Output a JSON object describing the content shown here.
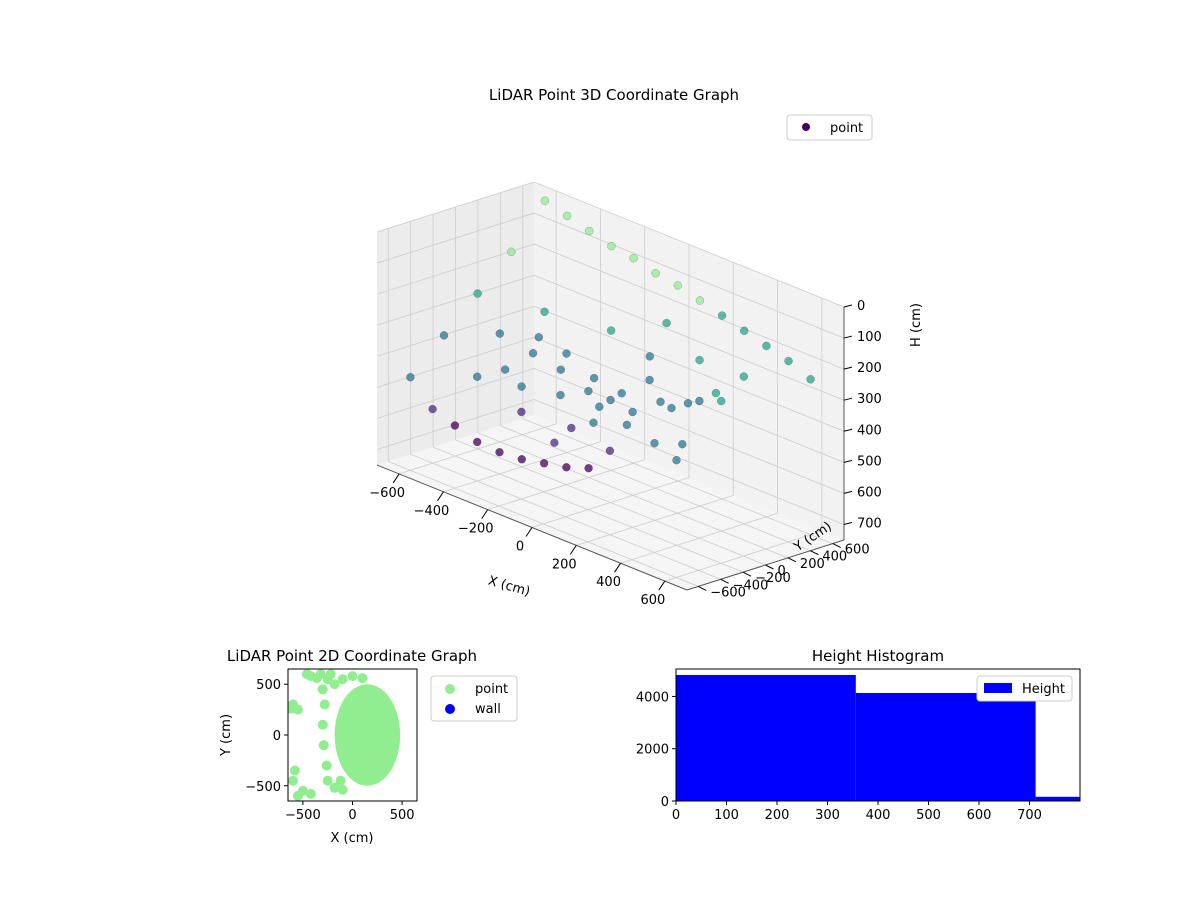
{
  "colors": {
    "purple_dark": "#440154",
    "purple_mid": "#472d7b",
    "teal": "#2a788e",
    "green_teal": "#22a884",
    "light_green": "#90ee90",
    "blue": "#0000ff",
    "pane_grey": "#f2f2f2",
    "grid_grey": "#cccccc"
  },
  "chart_data": [
    {
      "type": "scatter3d",
      "title": "LiDAR Point 3D Coordinate Graph",
      "xlabel": "X (cm)",
      "ylabel": "Y (cm)",
      "zlabel": "H (cm)",
      "xlim": [
        -700,
        700
      ],
      "ylim": [
        -700,
        700
      ],
      "zlim": [
        0,
        750
      ],
      "z_inverted": true,
      "x_ticks": [
        -600,
        -400,
        -200,
        0,
        200,
        400,
        600
      ],
      "y_ticks": [
        -600,
        -400,
        -200,
        0,
        200,
        400,
        600
      ],
      "z_ticks": [
        0,
        100,
        200,
        300,
        400,
        500,
        600,
        700
      ],
      "x_tick_labels": [
        "−600",
        "−400",
        "−200",
        "0",
        "200",
        "400",
        "600"
      ],
      "y_tick_labels": [
        "−600",
        "−400",
        "−200",
        "0",
        "200",
        "400",
        "600"
      ],
      "z_tick_labels": [
        "0",
        "100",
        "200",
        "300",
        "400",
        "500",
        "600",
        "700"
      ],
      "legend": {
        "entries": [
          "point"
        ],
        "placement": "top-right"
      },
      "series": [
        {
          "name": "point",
          "colormap": "viridis",
          "points": [
            [
              0,
              0,
              420
            ],
            [
              100,
              0,
              430
            ],
            [
              -100,
              0,
              420
            ],
            [
              0,
              100,
              410
            ],
            [
              0,
              -100,
              430
            ],
            [
              150,
              150,
              400
            ],
            [
              -150,
              150,
              410
            ],
            [
              150,
              -150,
              440
            ],
            [
              -150,
              -150,
              430
            ],
            [
              250,
              50,
              380
            ],
            [
              -250,
              50,
              400
            ],
            [
              50,
              250,
              370
            ],
            [
              50,
              -250,
              450
            ],
            [
              300,
              200,
              360
            ],
            [
              -300,
              200,
              380
            ],
            [
              300,
              -200,
              450
            ],
            [
              -300,
              -200,
              440
            ],
            [
              350,
              0,
              330
            ],
            [
              -350,
              0,
              370
            ],
            [
              0,
              350,
              320
            ],
            [
              0,
              -350,
              470
            ],
            [
              400,
              150,
              300
            ],
            [
              -400,
              150,
              350
            ],
            [
              400,
              -150,
              430
            ],
            [
              -400,
              -150,
              420
            ],
            [
              200,
              400,
              280
            ],
            [
              -200,
              400,
              300
            ],
            [
              200,
              -400,
              480
            ],
            [
              -200,
              -400,
              470
            ],
            [
              450,
              300,
              250
            ],
            [
              -450,
              300,
              300
            ],
            [
              450,
              -300,
              450
            ],
            [
              -450,
              -300,
              440
            ],
            [
              500,
              0,
              280
            ],
            [
              -500,
              0,
              350
            ],
            [
              0,
              500,
              230
            ],
            [
              0,
              -500,
              500
            ],
            [
              -600,
              600,
              20
            ],
            [
              -500,
              600,
              40
            ],
            [
              -400,
              600,
              60
            ],
            [
              -300,
              600,
              80
            ],
            [
              -200,
              600,
              90
            ],
            [
              -100,
              600,
              110
            ],
            [
              0,
              600,
              120
            ],
            [
              100,
              600,
              140
            ],
            [
              200,
              600,
              160
            ],
            [
              300,
              600,
              180
            ],
            [
              400,
              600,
              200
            ],
            [
              500,
              600,
              220
            ],
            [
              600,
              600,
              250
            ],
            [
              -600,
              300,
              150
            ],
            [
              -600,
              0,
              250
            ],
            [
              -600,
              -300,
              350
            ],
            [
              -600,
              -600,
              450
            ],
            [
              -550,
              -500,
              550
            ],
            [
              -500,
              -400,
              600
            ],
            [
              -450,
              -300,
              650
            ],
            [
              -400,
              -200,
              680
            ],
            [
              -350,
              -100,
              700
            ],
            [
              -300,
              0,
              710
            ],
            [
              -250,
              100,
              720
            ],
            [
              -200,
              200,
              720
            ]
          ]
        }
      ]
    },
    {
      "type": "scatter",
      "title": "LiDAR Point 2D Coordinate Graph",
      "xlabel": "X (cm)",
      "ylabel": "Y (cm)",
      "xlim": [
        -650,
        650
      ],
      "ylim": [
        -650,
        650
      ],
      "x_ticks": [
        -500,
        0,
        500
      ],
      "y_ticks": [
        -500,
        0,
        500
      ],
      "x_tick_labels": [
        "−500",
        "0",
        "500"
      ],
      "y_tick_labels": [
        "−500",
        "0",
        "500"
      ],
      "legend": {
        "entries": [
          "point",
          "wall"
        ],
        "placement": "outside-right"
      },
      "series": [
        {
          "name": "point",
          "color": "#90ee90",
          "points": [
            [
              -600,
              300
            ],
            [
              -550,
              250
            ],
            [
              -620,
              260
            ],
            [
              -580,
              -350
            ],
            [
              -600,
              -450
            ],
            [
              -500,
              -550
            ],
            [
              -420,
              -580
            ],
            [
              -550,
              -600
            ],
            [
              -460,
              600
            ],
            [
              -420,
              580
            ],
            [
              -320,
              600
            ],
            [
              -360,
              560
            ],
            [
              -300,
              450
            ],
            [
              -250,
              550
            ],
            [
              -220,
              600
            ],
            [
              -180,
              500
            ],
            [
              -100,
              550
            ],
            [
              0,
              580
            ],
            [
              100,
              560
            ],
            [
              -280,
              300
            ],
            [
              -300,
              100
            ],
            [
              -290,
              -100
            ],
            [
              -260,
              -300
            ],
            [
              -250,
              -450
            ],
            [
              -180,
              -520
            ],
            [
              -100,
              -540
            ],
            [
              -120,
              -450
            ]
          ],
          "blob": {
            "center": [
              150,
              0
            ],
            "rx": 330,
            "ry": 500
          }
        },
        {
          "name": "wall",
          "color": "#0000ff",
          "points": []
        }
      ]
    },
    {
      "type": "bar",
      "title": "Height Histogram",
      "xlabel": "",
      "ylabel": "",
      "xlim": [
        0,
        800
      ],
      "ylim": [
        0,
        5050
      ],
      "x_ticks": [
        0,
        100,
        200,
        300,
        400,
        500,
        600,
        700
      ],
      "y_ticks": [
        0,
        2000,
        4000
      ],
      "legend": {
        "entries": [
          "Height"
        ],
        "placement": "top-right"
      },
      "series": [
        {
          "name": "Height",
          "color": "#0000ff",
          "bins": [
            {
              "x0": 0,
              "x1": 356,
              "value": 4820
            },
            {
              "x0": 356,
              "x1": 712,
              "value": 4130
            },
            {
              "x0": 712,
              "x1": 800,
              "value": 160
            }
          ]
        }
      ]
    }
  ]
}
